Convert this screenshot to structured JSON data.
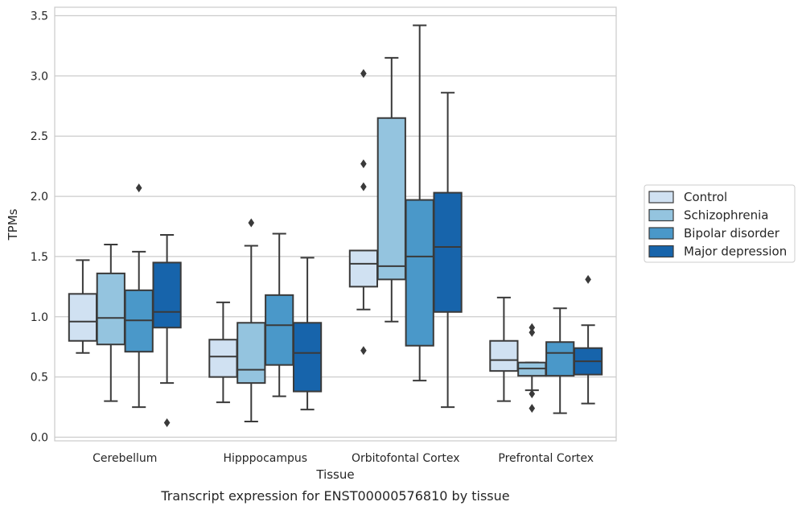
{
  "caption": "Transcript expression for ENST00000576810 by tissue",
  "colors": {
    "Control": "#d0e1f2",
    "Schizophrenia": "#94c4df",
    "Bipolar disorder": "#4a98c9",
    "Major depression": "#1764ab",
    "box_edge": "#3a3a3a",
    "grid": "#cccccc",
    "frame": "#cccccc"
  },
  "chart_data": {
    "type": "box",
    "title": "",
    "xlabel": "Tissue",
    "ylabel": "TPMs",
    "ylim": [
      -0.03,
      3.57
    ],
    "yticks": [
      0.0,
      0.5,
      1.0,
      1.5,
      2.0,
      2.5,
      3.0,
      3.5
    ],
    "ytick_labels": [
      "0.0",
      "0.5",
      "1.0",
      "1.5",
      "2.0",
      "2.5",
      "3.0",
      "3.5"
    ],
    "grid": "horizontal",
    "legend_position": "right",
    "categories": [
      "Cerebellum",
      "Hipppocampus",
      "Orbitofontal Cortex",
      "Prefrontal Cortex"
    ],
    "series": [
      {
        "name": "Control",
        "boxes": [
          {
            "whislo": 0.7,
            "q1": 0.8,
            "med": 0.96,
            "q3": 1.19,
            "whishi": 1.47,
            "fliers": []
          },
          {
            "whislo": 0.29,
            "q1": 0.5,
            "med": 0.67,
            "q3": 0.81,
            "whishi": 1.12,
            "fliers": []
          },
          {
            "whislo": 1.06,
            "q1": 1.25,
            "med": 1.44,
            "q3": 1.55,
            "whishi": 1.55,
            "fliers": [
              0.72,
              2.08,
              2.27,
              3.02
            ]
          },
          {
            "whislo": 0.3,
            "q1": 0.55,
            "med": 0.64,
            "q3": 0.8,
            "whishi": 1.16,
            "fliers": []
          }
        ]
      },
      {
        "name": "Schizophrenia",
        "boxes": [
          {
            "whislo": 0.3,
            "q1": 0.77,
            "med": 0.99,
            "q3": 1.36,
            "whishi": 1.6,
            "fliers": []
          },
          {
            "whislo": 0.13,
            "q1": 0.45,
            "med": 0.56,
            "q3": 0.95,
            "whishi": 1.59,
            "fliers": [
              1.78
            ]
          },
          {
            "whislo": 0.96,
            "q1": 1.31,
            "med": 1.42,
            "q3": 2.65,
            "whishi": 3.15,
            "fliers": []
          },
          {
            "whislo": 0.39,
            "q1": 0.51,
            "med": 0.57,
            "q3": 0.62,
            "whishi": 0.62,
            "fliers": [
              0.24,
              0.36,
              0.87,
              0.91
            ]
          }
        ]
      },
      {
        "name": "Bipolar disorder",
        "boxes": [
          {
            "whislo": 0.25,
            "q1": 0.71,
            "med": 0.97,
            "q3": 1.22,
            "whishi": 1.54,
            "fliers": [
              2.07
            ]
          },
          {
            "whislo": 0.34,
            "q1": 0.6,
            "med": 0.93,
            "q3": 1.18,
            "whishi": 1.69,
            "fliers": []
          },
          {
            "whislo": 0.47,
            "q1": 0.76,
            "med": 1.5,
            "q3": 1.97,
            "whishi": 3.42,
            "fliers": []
          },
          {
            "whislo": 0.2,
            "q1": 0.51,
            "med": 0.7,
            "q3": 0.79,
            "whishi": 1.07,
            "fliers": []
          }
        ]
      },
      {
        "name": "Major depression",
        "boxes": [
          {
            "whislo": 0.45,
            "q1": 0.91,
            "med": 1.04,
            "q3": 1.45,
            "whishi": 1.68,
            "fliers": [
              0.12
            ]
          },
          {
            "whislo": 0.23,
            "q1": 0.38,
            "med": 0.7,
            "q3": 0.95,
            "whishi": 1.49,
            "fliers": []
          },
          {
            "whislo": 0.25,
            "q1": 1.04,
            "med": 1.58,
            "q3": 2.03,
            "whishi": 2.86,
            "fliers": []
          },
          {
            "whislo": 0.28,
            "q1": 0.52,
            "med": 0.63,
            "q3": 0.74,
            "whishi": 0.93,
            "fliers": [
              1.31
            ]
          }
        ]
      }
    ]
  }
}
